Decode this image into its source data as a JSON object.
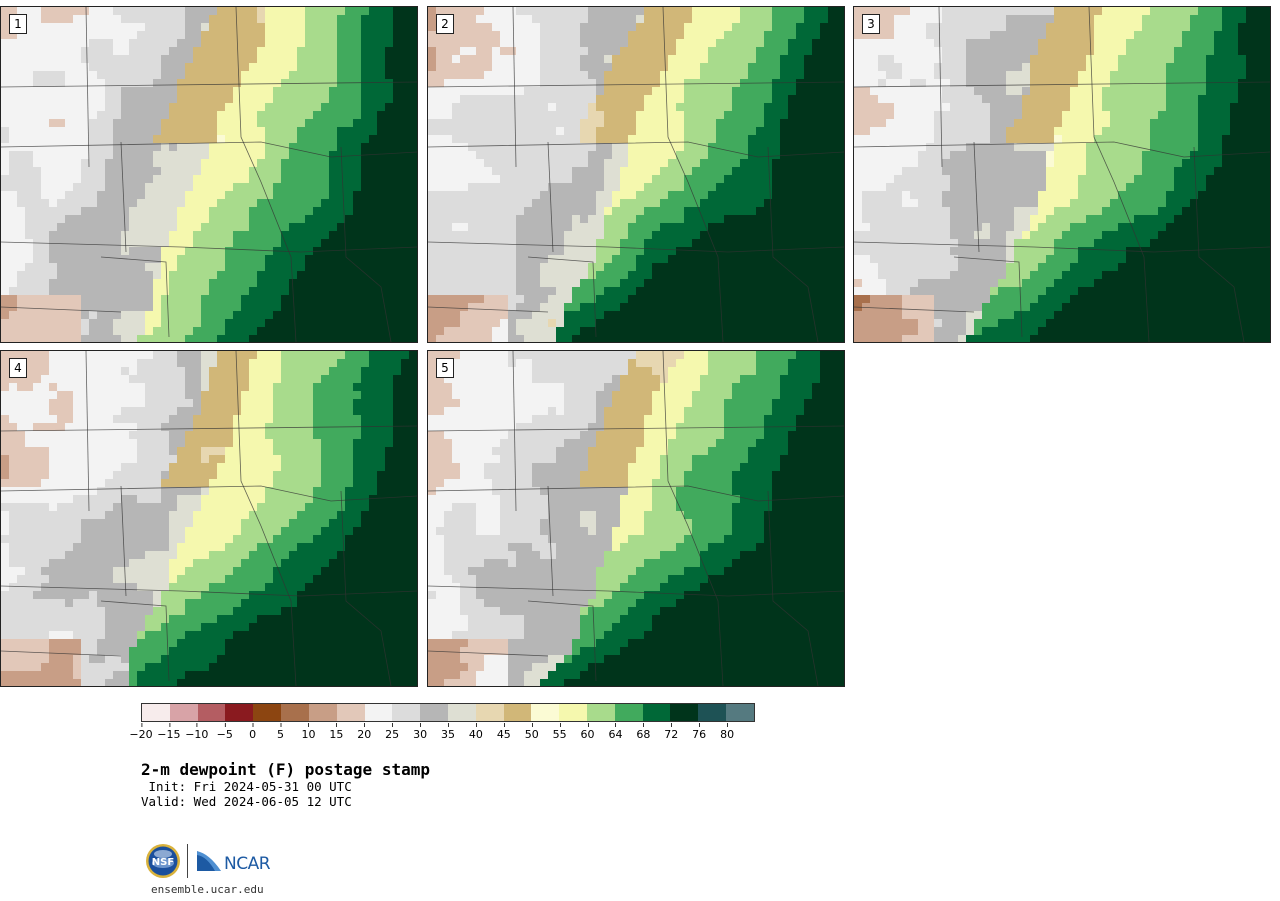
{
  "title": "2-m dewpoint (F) postage stamp",
  "init_text": " Init: Fri 2024-05-31 00 UTC",
  "valid_text": "Valid: Wed 2024-06-05 12 UTC",
  "url": "ensemble.ucar.edu",
  "logos": [
    "nsf-logo",
    "ncar-logo"
  ],
  "panels": [
    {
      "label": "1",
      "humidity_west": 0.0,
      "humidity_south": 0.25
    },
    {
      "label": "2",
      "humidity_west": 0.2,
      "humidity_south": 0.95
    },
    {
      "label": "3",
      "humidity_west": 0.1,
      "humidity_south": 0.75
    },
    {
      "label": "4",
      "humidity_west": 0.0,
      "humidity_south": 0.7
    },
    {
      "label": "5",
      "humidity_west": 0.35,
      "humidity_south": 0.95
    }
  ],
  "colorbar": {
    "unit": "F",
    "bounds": [
      -20,
      -15,
      -10,
      -5,
      0,
      5,
      10,
      15,
      20,
      25,
      30,
      35,
      40,
      45,
      50,
      55,
      60,
      64,
      68,
      72,
      76,
      80,
      84
    ],
    "tick_labels": [
      "−20",
      "−15",
      "−10",
      "−5",
      "0",
      "5",
      "10",
      "15",
      "20",
      "25",
      "30",
      "35",
      "40",
      "45",
      "50",
      "55",
      "60",
      "64",
      "68",
      "72",
      "76",
      "80"
    ],
    "colors": [
      "#f7ecec",
      "#d8a3a7",
      "#b45d62",
      "#8a1a1f",
      "#8c4511",
      "#a8704c",
      "#c89e86",
      "#e2c8b9",
      "#f3f3f3",
      "#dcdcdc",
      "#b6b6b6",
      "#dedfd3",
      "#e7d7b1",
      "#d1b778",
      "#fbfbd4",
      "#f5f8ae",
      "#a8db8c",
      "#41aa5d",
      "#006837",
      "#00341b",
      "#1e5255",
      "#557a80"
    ]
  }
}
